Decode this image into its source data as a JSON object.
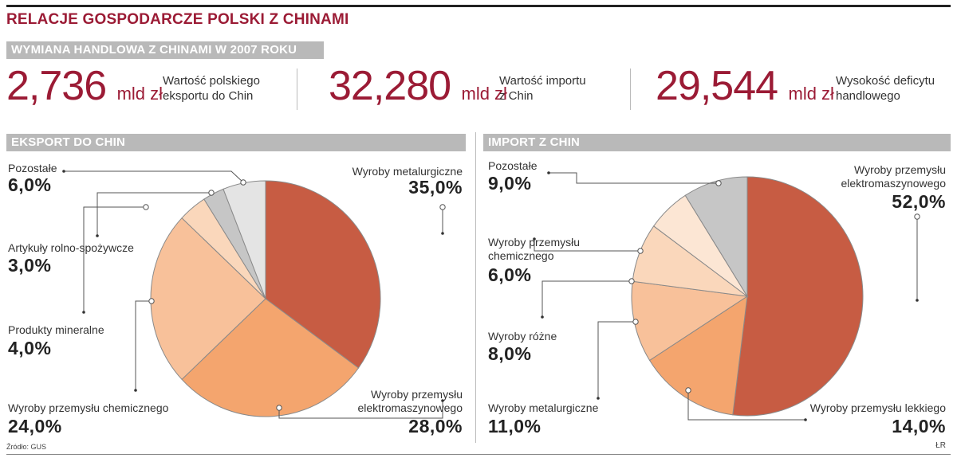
{
  "title": "RELACJE GOSPODARCZE POLSKI Z CHINAMI",
  "trade_section": "WYMIANA HANDLOWA Z CHINAMI W 2007 ROKU",
  "stats": [
    {
      "value": "2,736",
      "unit": "mld zł",
      "desc_line1": "Wartość polskiego",
      "desc_line2": "eksportu do Chin"
    },
    {
      "value": "32,280",
      "unit": "mld zł",
      "desc_line1": "Wartość importu",
      "desc_line2": "z Chin"
    },
    {
      "value": "29,544",
      "unit": "mld zł",
      "desc_line1": "Wysokość deficytu",
      "desc_line2": "handlowego"
    }
  ],
  "source": "Źródło: GUS",
  "author": "ŁR",
  "colors": {
    "accent": "#9b1b35",
    "band": "#b9b9b9",
    "slice_dark": "#c75c43",
    "slice_orange": "#f4a56e",
    "slice_light": "#f8c19a",
    "slice_pale": "#fad7bb",
    "slice_paler": "#fce6d4",
    "slice_gray": "#c6c6c6",
    "slice_lightgray": "#e4e4e4"
  },
  "chart_data": [
    {
      "type": "pie",
      "title": "EKSPORT DO CHIN",
      "slices": [
        {
          "label": "Wyroby metalurgiczne",
          "label_line1": "Wyroby metalurgiczne",
          "label_line2": "",
          "value": 35.0,
          "display": "35,0%",
          "color": "#c75c43"
        },
        {
          "label": "Wyroby przemysłu elektromaszynowego",
          "label_line1": "Wyroby przemysłu",
          "label_line2": "elektromaszynowego",
          "value": 28.0,
          "display": "28,0%",
          "color": "#f4a56e"
        },
        {
          "label": "Wyroby przemysłu chemicznego",
          "label_line1": "Wyroby przemysłu chemicznego",
          "label_line2": "",
          "value": 24.0,
          "display": "24,0%",
          "color": "#f8c19a"
        },
        {
          "label": "Produkty mineralne",
          "label_line1": "Produkty mineralne",
          "label_line2": "",
          "value": 4.0,
          "display": "4,0%",
          "color": "#fad7bb"
        },
        {
          "label": "Artykuły rolno-spożywcze",
          "label_line1": "Artykuły rolno-spożywcze",
          "label_line2": "",
          "value": 3.0,
          "display": "3,0%",
          "color": "#c6c6c6"
        },
        {
          "label": "Pozostałe",
          "label_line1": "Pozostałe",
          "label_line2": "",
          "value": 6.0,
          "display": "6,0%",
          "color": "#e4e4e4"
        }
      ]
    },
    {
      "type": "pie",
      "title": "IMPORT Z CHIN",
      "slices": [
        {
          "label": "Wyroby przemysłu elektromaszynowego",
          "label_line1": "Wyroby przemysłu",
          "label_line2": "elektromaszynowego",
          "value": 52.0,
          "display": "52,0%",
          "color": "#c75c43"
        },
        {
          "label": "Wyroby przemysłu lekkiego",
          "label_line1": "Wyroby przemysłu lekkiego",
          "label_line2": "",
          "value": 14.0,
          "display": "14,0%",
          "color": "#f4a56e"
        },
        {
          "label": "Wyroby metalurgiczne",
          "label_line1": "Wyroby metalurgiczne",
          "label_line2": "",
          "value": 11.0,
          "display": "11,0%",
          "color": "#f8c19a"
        },
        {
          "label": "Wyroby różne",
          "label_line1": "Wyroby różne",
          "label_line2": "",
          "value": 8.0,
          "display": "8,0%",
          "color": "#fad7bb"
        },
        {
          "label": "Wyroby przemysłu chemicznego",
          "label_line1": "Wyroby przemysłu",
          "label_line2": "chemicznego",
          "value": 6.0,
          "display": "6,0%",
          "color": "#fce6d4"
        },
        {
          "label": "Pozostałe",
          "label_line1": "Pozostałe",
          "label_line2": "",
          "value": 9.0,
          "display": "9,0%",
          "color": "#c6c6c6"
        }
      ]
    }
  ]
}
